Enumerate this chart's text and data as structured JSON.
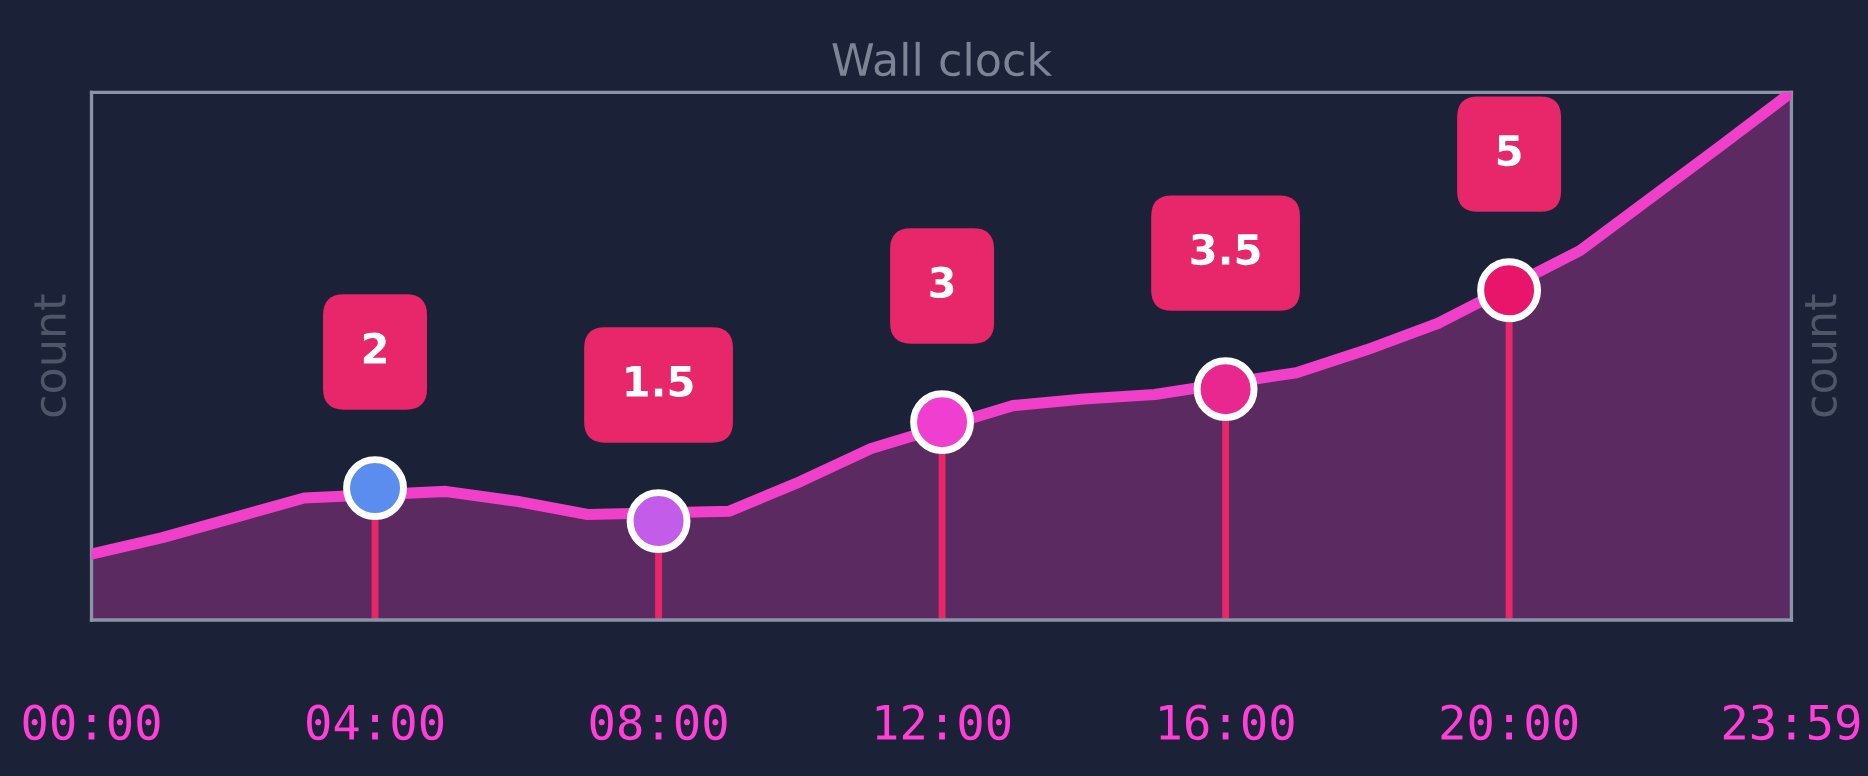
{
  "chart_data": {
    "type": "area",
    "title": "Wall clock",
    "ylabel": "count",
    "y2label": "count",
    "series": [
      {
        "color": "#f03fc8",
        "x": [
          0,
          1,
          2,
          3,
          5,
          6,
          7,
          9,
          10,
          11,
          13,
          14,
          15,
          17,
          18,
          19,
          21,
          22,
          23,
          23.983
        ],
        "values": [
          1.0,
          1.25,
          1.55,
          1.85,
          1.95,
          1.8,
          1.6,
          1.65,
          2.1,
          2.6,
          3.25,
          3.35,
          3.42,
          3.75,
          4.1,
          4.5,
          5.6,
          6.4,
          7.2,
          8
        ]
      },
      {
        "type": "lollipop",
        "color": "#e8266a",
        "x": [
          4,
          8,
          12,
          16,
          20
        ],
        "values": [
          2,
          1.5,
          3,
          3.5,
          5
        ],
        "colors": [
          "#5b8def",
          "#c35ce8",
          "#f03fd0",
          "#e8288f",
          "#e8156a"
        ],
        "data_labels": true
      }
    ],
    "xlim": [
      0,
      23.983
    ],
    "xticks": [
      {
        "value": 0,
        "label": "00:00"
      },
      {
        "value": 4,
        "label": "04:00"
      },
      {
        "value": 8,
        "label": "08:00"
      },
      {
        "value": 12,
        "label": "12:00"
      },
      {
        "value": 16,
        "label": "16:00"
      },
      {
        "value": 20,
        "label": "20:00"
      },
      {
        "value": 23.983,
        "label": "23:59"
      }
    ],
    "tick_labels": "x"
  }
}
